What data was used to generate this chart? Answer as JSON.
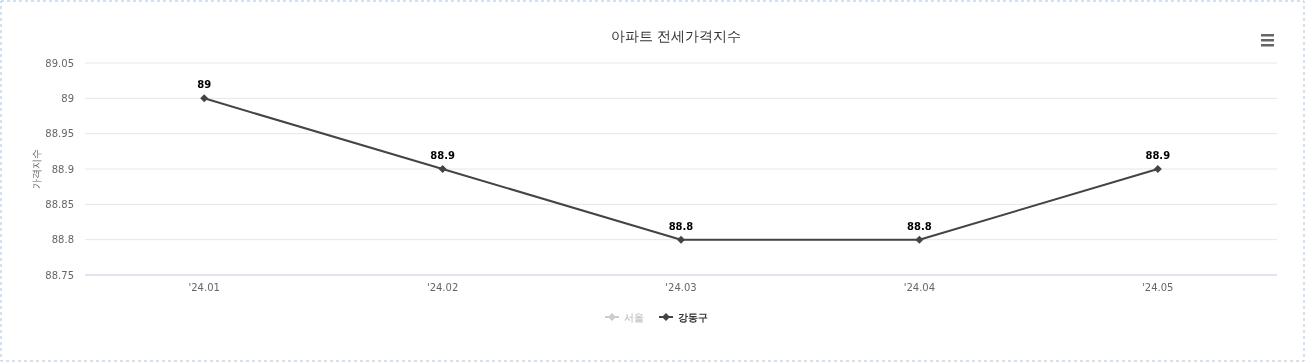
{
  "chart_data": {
    "type": "line",
    "title": "아파트 전세가격지수",
    "ylabel": "가격지수",
    "categories": [
      "'24.01",
      "'24.02",
      "'24.03",
      "'24.04",
      "'24.05"
    ],
    "series": [
      {
        "name": "서울",
        "color": "#cccccc",
        "values": [
          null,
          null,
          null,
          null,
          null
        ]
      },
      {
        "name": "강동구",
        "color": "#434348",
        "values": [
          89,
          88.9,
          88.8,
          88.8,
          88.9
        ]
      }
    ],
    "ylim": [
      88.75,
      89.05
    ],
    "yticks": [
      88.75,
      88.8,
      88.85,
      88.9,
      88.95,
      89,
      89.05
    ],
    "grid": "y",
    "legend": "bottom",
    "marker": "diamond",
    "data_labels": true
  }
}
